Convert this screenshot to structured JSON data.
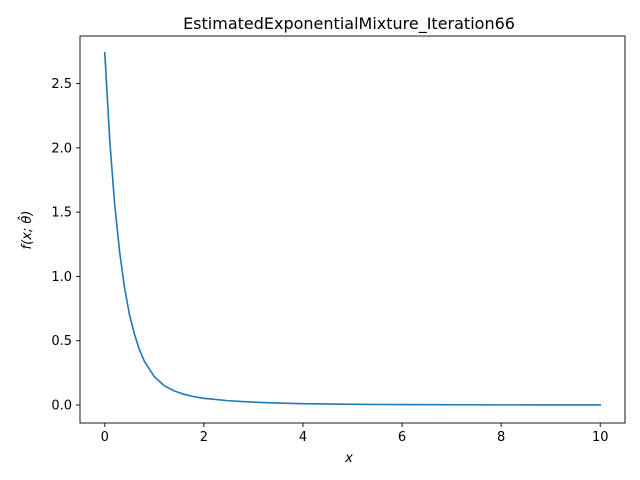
{
  "chart_data": {
    "type": "line",
    "title": "EstimatedExponentialMixture_Iteration66",
    "xlabel": "x",
    "ylabel": "f(x; θ̂)",
    "xlim": [
      -0.5,
      10.5
    ],
    "ylim": [
      -0.14,
      2.87
    ],
    "xticks": [
      0,
      2,
      4,
      6,
      8,
      10
    ],
    "xtick_labels": [
      "0",
      "2",
      "4",
      "6",
      "8",
      "10"
    ],
    "yticks": [
      0.0,
      0.5,
      1.0,
      1.5,
      2.0,
      2.5
    ],
    "ytick_labels": [
      "0.0",
      "0.5",
      "1.0",
      "1.5",
      "2.0",
      "2.5"
    ],
    "grid": false,
    "series": [
      {
        "color": "#1f77b4",
        "x": [
          0,
          0.1,
          0.2,
          0.3,
          0.4,
          0.5,
          0.6,
          0.7,
          0.8,
          0.9,
          1.0,
          1.2,
          1.4,
          1.6,
          1.8,
          2.0,
          2.5,
          3.0,
          3.5,
          4.0,
          5.0,
          6.0,
          7.0,
          8.0,
          9.0,
          10.0
        ],
        "y": [
          2.74,
          2.06,
          1.56,
          1.19,
          0.91,
          0.7,
          0.55,
          0.43,
          0.34,
          0.28,
          0.22,
          0.15,
          0.11,
          0.083,
          0.065,
          0.052,
          0.033,
          0.022,
          0.015,
          0.01,
          0.005,
          0.003,
          0.002,
          0.001,
          0.0005,
          0.0003
        ]
      }
    ]
  }
}
